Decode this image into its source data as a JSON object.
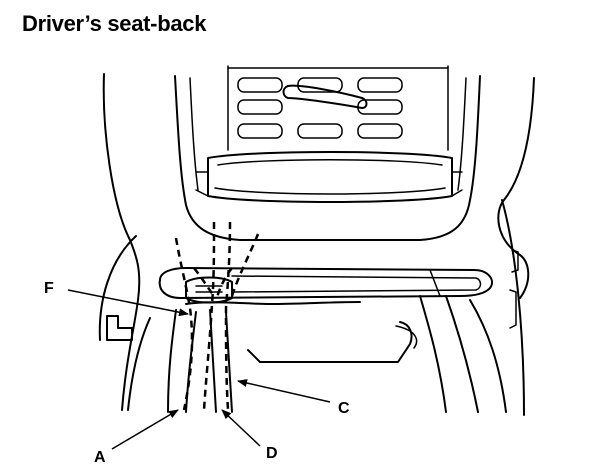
{
  "title": "Driver’s seat-back",
  "callouts": {
    "a": "A",
    "c": "C",
    "d": "D",
    "f": "F"
  }
}
